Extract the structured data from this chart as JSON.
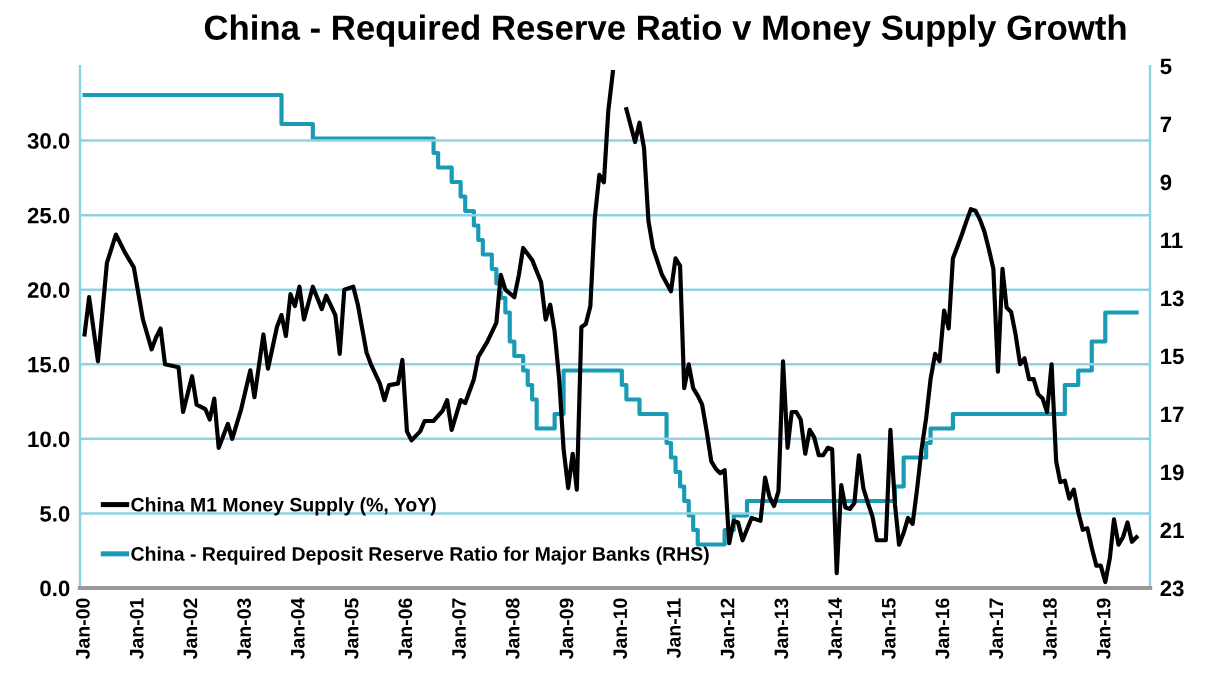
{
  "chart_data": {
    "type": "line",
    "title": "China - Required Reserve Ratio v Money Supply Growth",
    "xlim": [
      "1999-12",
      "2019-11"
    ],
    "xticks": [
      {
        "value": "2000-01",
        "label": "Jan-00"
      },
      {
        "value": "2001-01",
        "label": "Jan-01"
      },
      {
        "value": "2002-01",
        "label": "Jan-02"
      },
      {
        "value": "2003-01",
        "label": "Jan-03"
      },
      {
        "value": "2004-01",
        "label": "Jan-04"
      },
      {
        "value": "2005-01",
        "label": "Jan-05"
      },
      {
        "value": "2006-01",
        "label": "Jan-06"
      },
      {
        "value": "2007-01",
        "label": "Jan-07"
      },
      {
        "value": "2008-01",
        "label": "Jan-08"
      },
      {
        "value": "2009-01",
        "label": "Jan-09"
      },
      {
        "value": "2010-01",
        "label": "Jan-10"
      },
      {
        "value": "2011-01",
        "label": "Jan-11"
      },
      {
        "value": "2012-01",
        "label": "Jan-12"
      },
      {
        "value": "2013-01",
        "label": "Jan-13"
      },
      {
        "value": "2014-01",
        "label": "Jan-14"
      },
      {
        "value": "2015-01",
        "label": "Jan-15"
      },
      {
        "value": "2016-01",
        "label": "Jan-16"
      },
      {
        "value": "2017-01",
        "label": "Jan-17"
      },
      {
        "value": "2018-01",
        "label": "Jan-18"
      },
      {
        "value": "2019-01",
        "label": "Jan-19"
      }
    ],
    "ylim": [
      0,
      35
    ],
    "yticks": [
      {
        "value": 0,
        "label": "0.0"
      },
      {
        "value": 5,
        "label": "5.0"
      },
      {
        "value": 10,
        "label": "10.0"
      },
      {
        "value": 15,
        "label": "15.0"
      },
      {
        "value": 20,
        "label": "20.0"
      },
      {
        "value": 25,
        "label": "25.0"
      },
      {
        "value": 30,
        "label": "30.0"
      }
    ],
    "y2lim": [
      23,
      5
    ],
    "y2ticks": [
      5,
      7,
      9,
      11,
      13,
      15,
      17,
      19,
      21,
      23
    ],
    "grid": "y",
    "legend": "bottom left",
    "marker": "none",
    "line_style": "solid",
    "series": [
      {
        "name": "China M1 Money Supply (%, YoY)",
        "color": "#000000",
        "x": [
          "2000-01",
          "2000-02",
          "2000-04",
          "2000-06",
          "2000-08",
          "2000-10",
          "2000-12",
          "2001-02",
          "2001-04",
          "2001-05",
          "2001-06",
          "2001-07",
          "2001-10",
          "2001-11",
          "2002-01",
          "2002-02",
          "2002-04",
          "2002-05",
          "2002-06",
          "2002-07",
          "2002-09",
          "2002-10",
          "2002-12",
          "2003-02",
          "2003-03",
          "2003-05",
          "2003-06",
          "2003-08",
          "2003-09",
          "2003-10",
          "2003-11",
          "2003-12",
          "2004-01",
          "2004-02",
          "2004-04",
          "2004-06",
          "2004-07",
          "2004-09",
          "2004-10",
          "2004-11",
          "2005-01",
          "2005-02",
          "2005-04",
          "2005-05",
          "2005-07",
          "2005-08",
          "2005-09",
          "2005-11",
          "2005-12",
          "2006-01",
          "2006-02",
          "2006-04",
          "2006-05",
          "2006-07",
          "2006-09",
          "2006-10",
          "2006-11",
          "2007-01",
          "2007-02",
          "2007-04",
          "2007-05",
          "2007-07",
          "2007-09",
          "2007-10",
          "2007-11",
          "2008-01",
          "2008-02",
          "2008-03",
          "2008-05",
          "2008-07",
          "2008-08",
          "2008-09",
          "2008-10",
          "2008-11",
          "2008-12",
          "2009-01",
          "2009-02",
          "2009-03",
          "2009-04",
          "2009-05",
          "2009-06",
          "2009-07",
          "2009-08",
          "2009-09",
          "2009-10",
          "2009-11",
          "2009-12",
          "2010-01",
          "2010-02",
          "2010-04",
          "2010-05",
          "2010-06",
          "2010-07",
          "2010-08",
          "2010-10",
          "2010-12",
          "2011-01",
          "2011-02",
          "2011-03",
          "2011-04",
          "2011-05",
          "2011-06",
          "2011-07",
          "2011-08",
          "2011-09",
          "2011-10",
          "2011-11",
          "2011-12",
          "2012-01",
          "2012-02",
          "2012-03",
          "2012-04",
          "2012-06",
          "2012-07",
          "2012-08",
          "2012-09",
          "2012-10",
          "2012-11",
          "2012-12",
          "2013-01",
          "2013-02",
          "2013-03",
          "2013-04",
          "2013-05",
          "2013-06",
          "2013-07",
          "2013-08",
          "2013-09",
          "2013-10",
          "2013-11",
          "2013-12",
          "2014-01",
          "2014-02",
          "2014-03",
          "2014-04",
          "2014-05",
          "2014-06",
          "2014-07",
          "2014-08",
          "2014-09",
          "2014-10",
          "2014-11",
          "2014-12",
          "2015-01",
          "2015-02",
          "2015-03",
          "2015-04",
          "2015-05",
          "2015-06",
          "2015-07",
          "2015-08",
          "2015-09",
          "2015-10",
          "2015-11",
          "2015-12",
          "2016-01",
          "2016-02",
          "2016-03",
          "2016-04",
          "2016-05",
          "2016-06",
          "2016-07",
          "2016-08",
          "2016-09",
          "2016-10",
          "2016-11",
          "2016-12",
          "2017-01",
          "2017-02",
          "2017-03",
          "2017-04",
          "2017-05",
          "2017-06",
          "2017-07",
          "2017-08",
          "2017-09",
          "2017-10",
          "2017-11",
          "2017-12",
          "2018-01",
          "2018-02",
          "2018-03",
          "2018-04",
          "2018-05",
          "2018-06",
          "2018-07",
          "2018-08",
          "2018-09",
          "2018-10",
          "2018-11",
          "2018-12",
          "2019-01",
          "2019-02",
          "2019-03",
          "2019-04",
          "2019-05",
          "2019-06",
          "2019-07",
          "2019-08"
        ],
        "values": [
          17.0,
          19.5,
          15.2,
          21.8,
          23.7,
          22.5,
          21.5,
          18.0,
          16.0,
          16.8,
          17.4,
          15.0,
          14.8,
          11.8,
          14.2,
          12.3,
          12.0,
          11.3,
          12.7,
          9.4,
          11.0,
          10.0,
          12.0,
          14.6,
          12.8,
          17.0,
          14.7,
          17.5,
          18.3,
          16.9,
          19.7,
          18.9,
          20.2,
          18.0,
          20.2,
          18.7,
          19.6,
          18.3,
          15.7,
          20.0,
          20.2,
          19.0,
          15.8,
          15.0,
          13.7,
          12.6,
          13.6,
          13.7,
          15.3,
          10.5,
          9.9,
          10.5,
          11.2,
          11.2,
          11.9,
          12.6,
          10.6,
          12.6,
          12.4,
          14.0,
          15.5,
          16.5,
          17.8,
          21.0,
          20.0,
          19.5,
          21.0,
          22.8,
          22.0,
          20.5,
          18.0,
          19.0,
          17.2,
          14.0,
          9.3,
          6.7,
          9.0,
          6.6,
          17.5,
          17.7,
          18.9,
          24.8,
          27.7,
          27.2,
          32.0,
          34.6,
          null,
          null,
          32.1,
          29.9,
          31.2,
          29.5,
          24.6,
          22.8,
          21.0,
          19.9,
          22.1,
          21.6,
          13.4,
          15.0,
          13.4,
          12.9,
          12.3,
          10.5,
          8.5,
          8.0,
          7.7,
          7.9,
          3.0,
          4.5,
          4.4,
          3.2,
          4.7,
          4.6,
          4.5,
          7.4,
          6.1,
          5.5,
          6.5,
          15.2,
          9.4,
          11.8,
          11.8,
          11.3,
          9.0,
          10.6,
          10.1,
          8.9,
          8.9,
          9.4,
          9.3,
          1.0,
          6.9,
          5.4,
          5.3,
          5.7,
          8.9,
          6.7,
          5.7,
          4.8,
          3.2,
          3.2,
          3.2,
          10.6,
          5.6,
          2.9,
          3.7,
          4.7,
          4.3,
          6.6,
          9.3,
          11.4,
          14.0,
          15.7,
          15.2,
          18.6,
          17.4,
          22.1,
          22.9,
          23.7,
          24.6,
          25.4,
          25.3,
          24.7,
          23.9,
          22.7,
          21.4,
          14.5,
          21.4,
          18.8,
          18.5,
          17.0,
          15.0,
          15.4,
          14.0,
          14.0,
          13.0,
          12.7,
          11.8,
          15.0,
          8.5,
          7.1,
          7.2,
          6.0,
          6.6,
          5.1,
          3.9,
          4.0,
          2.7,
          1.5,
          1.5,
          0.4,
          2.0,
          4.6,
          2.9,
          3.4,
          4.4,
          3.1,
          3.4
        ]
      },
      {
        "name": "China - Required Deposit Reserve Ratio for Major Banks (RHS)",
        "color": "#1a9bb5",
        "type": "step",
        "axis": "y2",
        "x": [
          "2000-01",
          "2003-09",
          "2004-04",
          "2006-07",
          "2006-08",
          "2006-11",
          "2007-01",
          "2007-02",
          "2007-04",
          "2007-05",
          "2007-06",
          "2007-08",
          "2007-09",
          "2007-10",
          "2007-11",
          "2007-12",
          "2008-01",
          "2008-03",
          "2008-04",
          "2008-05",
          "2008-06",
          "2008-10",
          "2008-12",
          "2010-01",
          "2010-02",
          "2010-05",
          "2010-11",
          "2010-12",
          "2011-01",
          "2011-02",
          "2011-03",
          "2011-04",
          "2011-05",
          "2011-06",
          "2011-12",
          "2012-02",
          "2012-05",
          "2015-02",
          "2015-04",
          "2015-09",
          "2015-10",
          "2016-03",
          "2018-04",
          "2018-07",
          "2018-10",
          "2019-01",
          "2019-08"
        ],
        "values": [
          6.0,
          7.0,
          7.5,
          8.0,
          8.5,
          9.0,
          9.5,
          10.0,
          10.5,
          11.0,
          11.5,
          12.0,
          12.5,
          13.0,
          13.5,
          14.5,
          15.0,
          15.5,
          16.0,
          16.5,
          17.5,
          17.0,
          15.5,
          16.0,
          16.5,
          17.0,
          18.0,
          18.5,
          19.0,
          19.5,
          20.0,
          20.5,
          21.0,
          21.5,
          21.0,
          20.5,
          20.0,
          19.5,
          18.5,
          18.0,
          17.5,
          17.0,
          16.0,
          15.5,
          14.5,
          13.5,
          13.5
        ]
      }
    ]
  }
}
